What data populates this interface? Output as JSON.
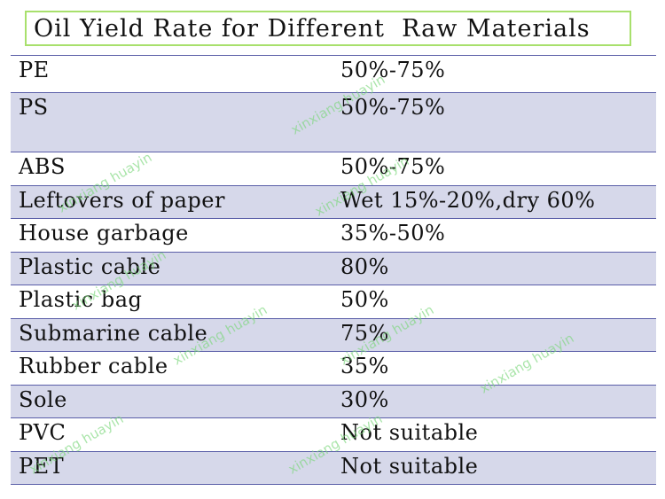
{
  "title": "Oil Yield Rate for Different  Raw Materials",
  "rows": [
    {
      "material": "PE",
      "rate": "50%-75%"
    },
    {
      "material": "PS",
      "rate": "50%-75%"
    },
    {
      "material": "ABS",
      "rate": "50%-75%"
    },
    {
      "material": "Leftovers of paper",
      "rate": "Wet 15%-20%,dry 60%"
    },
    {
      "material": "House garbage",
      "rate": "35%-50%"
    },
    {
      "material": "Plastic cable",
      "rate": "80%"
    },
    {
      "material": "Plastic bag",
      "rate": "50%"
    },
    {
      "material": "Submarine cable",
      "rate": "75%"
    },
    {
      "material": "Rubber cable",
      "rate": "35%"
    },
    {
      "material": "Sole",
      "rate": "30%"
    },
    {
      "material": "PVC",
      "rate": "Not suitable"
    },
    {
      "material": "PET",
      "rate": "Not suitable"
    }
  ],
  "watermark": "xinxiang huayin",
  "colors": {
    "row_band": "#d6d8ea",
    "rule": "#5a5ea8",
    "title_border": "#a8e06c",
    "watermark": "#7dd77d"
  }
}
